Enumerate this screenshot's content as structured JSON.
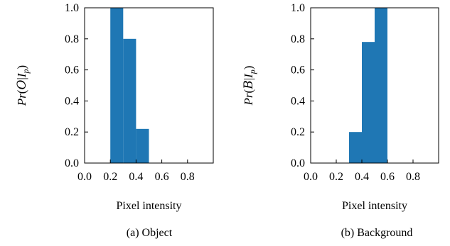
{
  "bar_color": "#1f77b4",
  "captions": [
    "(a) Object",
    "(b) Background"
  ],
  "ylabels": [
    "Pr(O|I_p)",
    "Pr(B|I_p)"
  ],
  "chart_data": [
    {
      "type": "bar",
      "title": "",
      "caption": "(a) Object",
      "xlabel": "Pixel intensity",
      "ylabel": "Pr(O|I_p)",
      "xlim": [
        0.0,
        1.0
      ],
      "ylim": [
        0.0,
        1.0
      ],
      "x_tick_labels": [
        "0.0",
        "0.2",
        "0.4",
        "0.6",
        "0.8"
      ],
      "y_tick_labels": [
        "0.0",
        "0.2",
        "0.4",
        "0.6",
        "0.8",
        "1.0"
      ],
      "bins": [
        [
          0.2,
          0.3
        ],
        [
          0.3,
          0.4
        ],
        [
          0.4,
          0.5
        ]
      ],
      "values": [
        1.0,
        0.8,
        0.22
      ],
      "grid": false
    },
    {
      "type": "bar",
      "title": "",
      "caption": "(b) Background",
      "xlabel": "Pixel intensity",
      "ylabel": "Pr(B|I_p)",
      "xlim": [
        0.0,
        1.0
      ],
      "ylim": [
        0.0,
        1.0
      ],
      "x_tick_labels": [
        "0.0",
        "0.2",
        "0.4",
        "0.6",
        "0.8"
      ],
      "y_tick_labels": [
        "0.0",
        "0.2",
        "0.4",
        "0.6",
        "0.8",
        "1.0"
      ],
      "bins": [
        [
          0.3,
          0.4
        ],
        [
          0.4,
          0.5
        ],
        [
          0.5,
          0.6
        ]
      ],
      "values": [
        0.2,
        0.78,
        1.0
      ],
      "grid": false
    }
  ]
}
